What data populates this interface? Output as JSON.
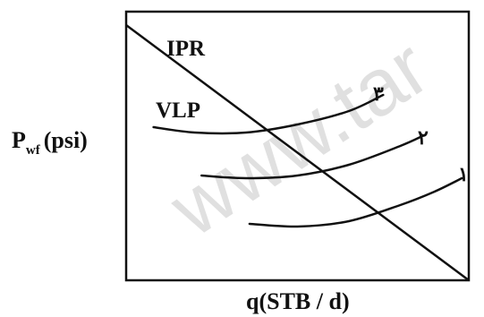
{
  "chart_data": {
    "type": "line",
    "title": "",
    "xlabel": "q(STB / d)",
    "ylabel_main": "P",
    "ylabel_sub": "wf",
    "ylabel_unit": "(psi)",
    "xlim": [
      0,
      100
    ],
    "ylim": [
      0,
      100
    ],
    "grid": false,
    "ipr": {
      "name": "IPR",
      "points": [
        [
          0,
          95
        ],
        [
          100,
          0
        ]
      ]
    },
    "vlp_label": "VLP",
    "vlp_curves": [
      {
        "name": "۳",
        "points": [
          [
            8,
            57
          ],
          [
            20,
            55
          ],
          [
            35,
            55
          ],
          [
            50,
            58
          ],
          [
            65,
            63
          ],
          [
            75,
            69
          ]
        ]
      },
      {
        "name": "۲",
        "points": [
          [
            22,
            39
          ],
          [
            35,
            38
          ],
          [
            50,
            39
          ],
          [
            65,
            43
          ],
          [
            80,
            50
          ],
          [
            87,
            54
          ]
        ]
      },
      {
        "name": "۱",
        "points": [
          [
            36,
            21
          ],
          [
            50,
            20
          ],
          [
            65,
            22
          ],
          [
            80,
            28
          ],
          [
            90,
            33
          ],
          [
            98,
            38
          ]
        ]
      }
    ]
  },
  "watermark": {
    "text": "www.tar"
  },
  "colors": {
    "line": "#111111",
    "frame": "#111111",
    "background": "#ffffff"
  }
}
